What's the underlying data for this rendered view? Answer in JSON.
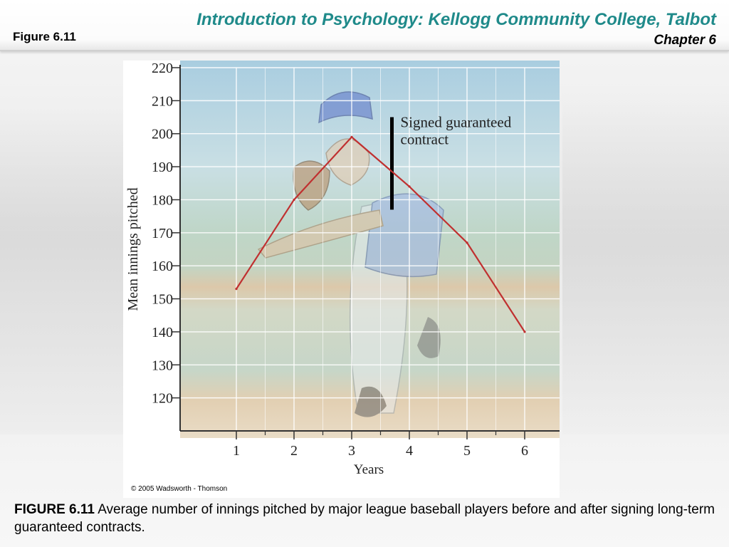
{
  "header": {
    "course_title": "Introduction to Psychology: Kellogg Community College, Talbot",
    "chapter": "Chapter 6",
    "figure_label": "Figure 6.11"
  },
  "chart_data": {
    "type": "line",
    "x": [
      1,
      2,
      3,
      4,
      5,
      6
    ],
    "series": [
      {
        "values": [
          153,
          180,
          199,
          184,
          167,
          140
        ],
        "color": "#c03030"
      }
    ],
    "xlabel": "Years",
    "ylabel": "Mean innings pitched",
    "ylim": [
      110,
      220
    ],
    "y_ticks": [
      120,
      130,
      140,
      150,
      160,
      170,
      180,
      190,
      200,
      210,
      220
    ],
    "x_ticks": [
      1,
      2,
      3,
      4,
      5,
      6
    ],
    "grid": true,
    "annotation": {
      "lines": [
        "Signed guaranteed",
        "contract"
      ],
      "x_position": 3.5,
      "y_range": [
        177,
        205
      ]
    }
  },
  "figure": {
    "copyright": "© 2005 Wadsworth - Thomson"
  },
  "caption": {
    "head": "FIGURE 6.11",
    "text": " Average number of innings pitched by major league baseball players before and after signing long-term guaranteed contracts."
  },
  "colors": {
    "title_teal": "#1f8a8a",
    "line_red": "#c03030",
    "sky_blue": "#9fc6dc",
    "field_green": "#b8cfc0",
    "dirt_tan": "#d9c3a5"
  }
}
